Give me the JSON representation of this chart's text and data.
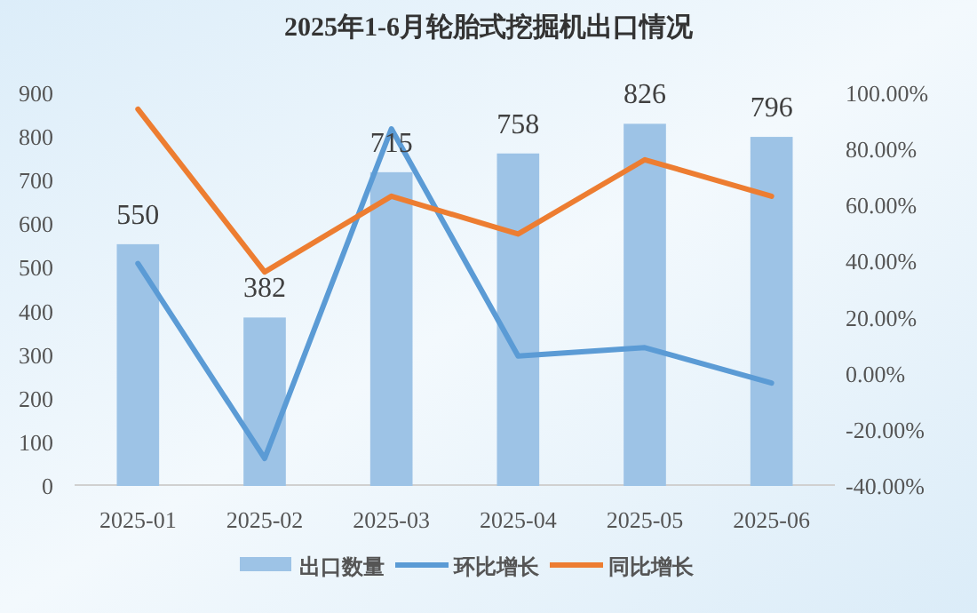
{
  "chart_data": {
    "type": "bar",
    "title": "2025年1-6月轮胎式挖掘机出口情况",
    "categories": [
      "2025-01",
      "2025-02",
      "2025-03",
      "2025-04",
      "2025-05",
      "2025-06"
    ],
    "series": [
      {
        "name": "出口数量",
        "color": "#9dc3e6",
        "values": [
          550,
          382,
          715,
          758,
          826,
          796
        ],
        "value_labels": [
          "550",
          "382",
          "715",
          "758",
          "826",
          "796"
        ]
      },
      {
        "name": "环比增长",
        "type": "line",
        "axis": "y2",
        "color": "#5b9bd5",
        "values": [
          39,
          -30.5,
          87,
          6,
          9,
          -3.6
        ]
      },
      {
        "name": "同比增长",
        "type": "line",
        "axis": "y2",
        "color": "#ed7d31",
        "values": [
          94,
          36,
          63,
          49.5,
          76,
          63
        ]
      }
    ],
    "ylim": [
      0,
      900
    ],
    "yticks": [
      0,
      100,
      200,
      300,
      400,
      500,
      600,
      700,
      800,
      900
    ],
    "y2lim": [
      -40,
      100
    ],
    "y2ticks": [
      {
        "value": -40,
        "label": "-40.00%"
      },
      {
        "value": -20,
        "label": "-20.00%"
      },
      {
        "value": 0,
        "label": "0.00%"
      },
      {
        "value": 20,
        "label": "20.00%"
      },
      {
        "value": 40,
        "label": "40.00%"
      },
      {
        "value": 60,
        "label": "60.00%"
      },
      {
        "value": 80,
        "label": "80.00%"
      },
      {
        "value": 100,
        "label": "100.00%"
      }
    ],
    "legend": "bottom"
  }
}
